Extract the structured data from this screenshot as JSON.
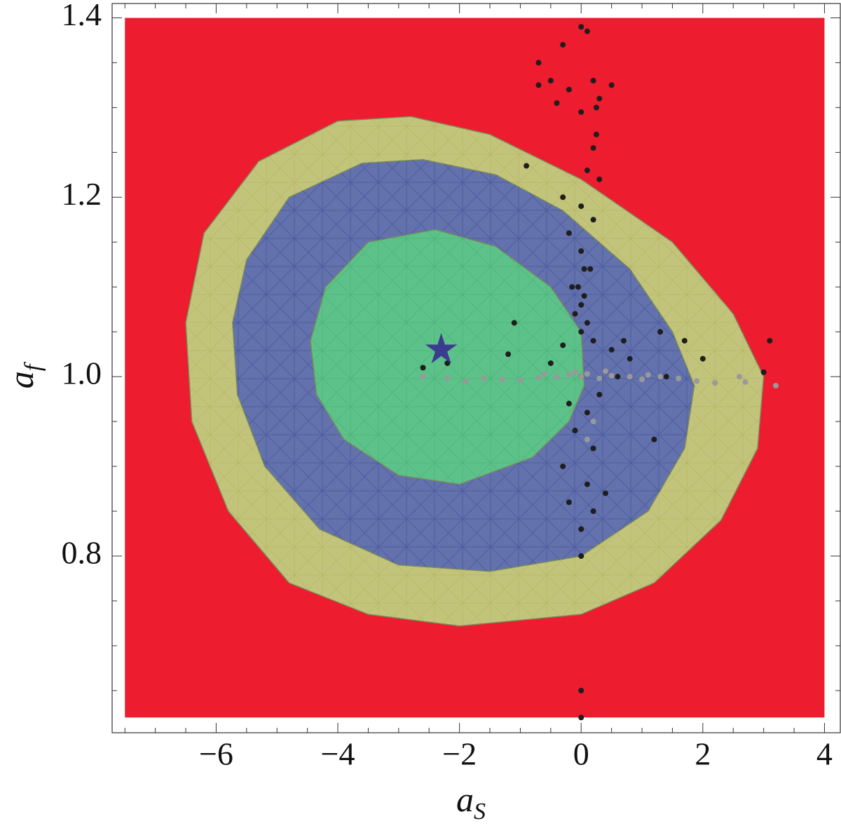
{
  "chart_data": {
    "type": "scatter",
    "xlabel": {
      "base": "a",
      "sub": "S"
    },
    "ylabel": {
      "base": "a",
      "sub": "f"
    },
    "xlim": [
      -7.71,
      4.26
    ],
    "ylim": [
      0.603,
      1.416
    ],
    "xticks": [
      {
        "value": -6,
        "label": "−6"
      },
      {
        "value": -4,
        "label": "−4"
      },
      {
        "value": -2,
        "label": "−2"
      },
      0,
      2,
      4
    ],
    "yticks": [
      0.8,
      {
        "value": 1.0,
        "label": "1.0"
      },
      1.2,
      1.4
    ],
    "xminorticks": [
      -7.5,
      -7,
      -6.5,
      -5.5,
      -5,
      -4.5,
      -3.5,
      -3,
      -2.5,
      -1.5,
      -1,
      -0.5,
      0.5,
      1,
      1.5,
      2.5,
      3,
      3.5
    ],
    "yminorticks": [
      0.65,
      0.7,
      0.75,
      0.85,
      0.9,
      0.95,
      1.05,
      1.1,
      1.15,
      1.25,
      1.3,
      1.35
    ],
    "regions": [
      {
        "color": "#ed1c2e",
        "x": [
          -7.5,
          4,
          4,
          -7.5
        ],
        "y": [
          1.4,
          1.4,
          0.62,
          0.62
        ]
      },
      {
        "color": "#c3c47c",
        "hatch": "#b3b35a",
        "x": [
          -6.5,
          -6.2,
          -5.3,
          -4,
          -2.8,
          -1.5,
          0,
          1.5,
          2.5,
          3.0,
          2.9,
          2.3,
          1.2,
          0,
          -2,
          -3.5,
          -4.8,
          -5.8,
          -6.4
        ],
        "y": [
          1.06,
          1.16,
          1.24,
          1.285,
          1.29,
          1.27,
          1.22,
          1.15,
          1.07,
          1.0,
          0.92,
          0.84,
          0.77,
          0.735,
          0.722,
          0.735,
          0.77,
          0.85,
          0.95
        ]
      },
      {
        "color": "#6372ac",
        "hatch": "#3f4f9a",
        "x": [
          -5.73,
          -5.5,
          -4.8,
          -3.6,
          -2.6,
          -1.4,
          -0.3,
          0.8,
          1.5,
          1.86,
          1.7,
          1.1,
          0,
          -1.5,
          -3,
          -4.3,
          -5.2,
          -5.65
        ],
        "y": [
          1.06,
          1.13,
          1.2,
          1.238,
          1.242,
          1.225,
          1.185,
          1.12,
          1.05,
          0.99,
          0.92,
          0.85,
          0.8,
          0.783,
          0.79,
          0.83,
          0.9,
          0.98
        ]
      },
      {
        "color": "#5dc28a",
        "hatch": "#44b070",
        "x": [
          -4.45,
          -4.2,
          -3.5,
          -2.4,
          -1.4,
          -0.5,
          0,
          0.05,
          -0.2,
          -0.8,
          -2,
          -3,
          -3.9,
          -4.35
        ],
        "y": [
          1.04,
          1.1,
          1.15,
          1.164,
          1.145,
          1.1,
          1.05,
          0.99,
          0.95,
          0.91,
          0.88,
          0.89,
          0.93,
          0.98
        ]
      }
    ],
    "series": [
      {
        "color": "#1e1e1e",
        "x": [
          0.0,
          -0.3,
          0.1,
          -0.7,
          -0.5,
          -0.7,
          -0.2,
          0.2,
          0.5,
          0.3,
          -0.4,
          0.0,
          0.25,
          0.25,
          0.2,
          0.1,
          -0.9,
          0.3,
          -0.3,
          0.0,
          0.2,
          -0.2,
          0.0,
          0.15,
          -0.15,
          0.05,
          -0.1,
          0.1,
          -1.1,
          0.0,
          0.2,
          -0.3,
          0.5,
          1.3,
          1.7,
          2.0,
          0.8,
          -1.2,
          -2.2,
          -2.6,
          0.0,
          0.3,
          -0.2,
          0.1,
          -0.1,
          0.2,
          1.2,
          -0.3,
          0.1,
          0.4,
          -0.2,
          0.0,
          0.2,
          0.0,
          3.1,
          3.0,
          0.0,
          0.0,
          1.4,
          0.6,
          -0.5,
          0.7,
          -0.05,
          0.05,
          0.0
        ],
        "y": [
          1.39,
          1.37,
          1.385,
          1.35,
          1.33,
          1.325,
          1.32,
          1.33,
          1.325,
          1.31,
          1.305,
          1.295,
          1.3,
          1.27,
          1.255,
          1.23,
          1.235,
          1.22,
          1.2,
          1.19,
          1.175,
          1.16,
          1.14,
          1.12,
          1.1,
          1.09,
          1.07,
          1.06,
          1.06,
          1.05,
          1.04,
          1.035,
          1.03,
          1.05,
          1.04,
          1.02,
          1.02,
          1.025,
          1.015,
          1.01,
          1.0,
          0.98,
          0.97,
          0.96,
          0.94,
          0.92,
          0.93,
          0.9,
          0.88,
          0.87,
          0.86,
          0.83,
          0.85,
          0.8,
          1.04,
          1.005,
          0.65,
          0.62,
          1.0,
          1.0,
          1.015,
          1.04,
          1.1,
          1.12,
          1.08
        ]
      },
      {
        "color": "#999999",
        "x": [
          -2.6,
          -2.2,
          -1.9,
          -1.6,
          -1.3,
          -1.0,
          -0.7,
          -0.4,
          -0.2,
          0.0,
          0.1,
          0.3,
          0.5,
          0.8,
          1.0,
          1.3,
          1.6,
          1.9,
          2.2,
          2.6,
          2.7,
          3.2,
          0.2,
          0.1,
          -0.1,
          0.4,
          -0.6,
          1.1
        ],
        "y": [
          1.0,
          0.998,
          0.995,
          0.998,
          0.997,
          0.996,
          0.999,
          1.0,
          1.002,
          1.0,
          1.003,
          0.998,
          1.001,
          1.0,
          0.997,
          1.0,
          0.998,
          0.995,
          0.993,
          1.0,
          0.994,
          0.99,
          0.95,
          0.93,
          1.005,
          1.006,
          1.003,
          1.002
        ]
      }
    ],
    "star": {
      "x": -2.3,
      "y": 1.03,
      "color": "#3b3b8f"
    }
  }
}
